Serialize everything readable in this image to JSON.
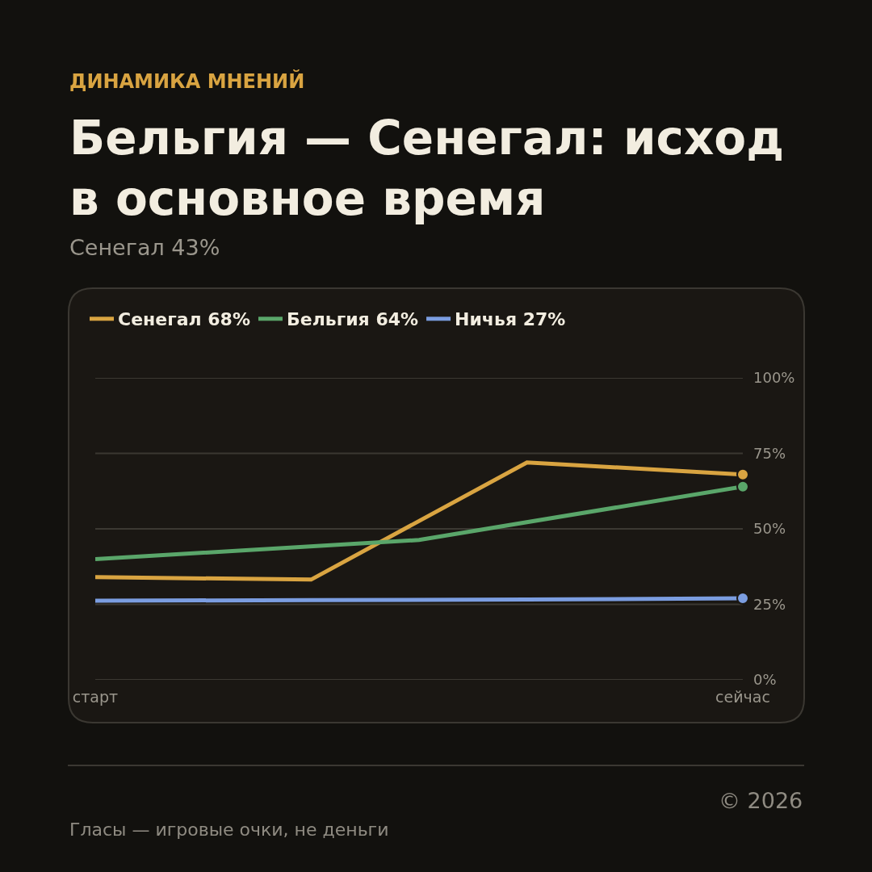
{
  "chart_data": {
    "type": "line",
    "title": "Бельгия — Сенегал: исход\nв основное время",
    "subtitle": "Сенегал 43%",
    "annotations": [
      "ДИНАМИКА МНЕНИЙ",
      "© 2026",
      "Гласы — игровые очки, не деньги"
    ],
    "series": [
      {
        "name": "Сенегал 68%",
        "color": "#d9a441",
        "values": [
          34,
          null,
          33.2,
          null,
          72,
          null,
          68
        ]
      },
      {
        "name": "Бельгия 64%",
        "color": "#5aa66a",
        "values": [
          40,
          null,
          null,
          46.3,
          null,
          null,
          64
        ]
      },
      {
        "name": "Ничья 27%",
        "color": "#7b9de0",
        "values": [
          26.2,
          null,
          26.4,
          null,
          26.6,
          null,
          27
        ]
      }
    ],
    "categories": [
      "старт",
      null,
      null,
      null,
      null,
      null,
      "сейчас"
    ],
    "ylim": [
      0,
      100
    ],
    "yticks": [
      {
        "value": 0,
        "label": "0%"
      },
      {
        "value": 25,
        "label": "25%"
      },
      {
        "value": 50,
        "label": "50%"
      },
      {
        "value": 75,
        "label": "75%"
      },
      {
        "value": 100,
        "label": "100%"
      }
    ],
    "grid": "y",
    "legend": "top left",
    "line_style": "solid"
  }
}
